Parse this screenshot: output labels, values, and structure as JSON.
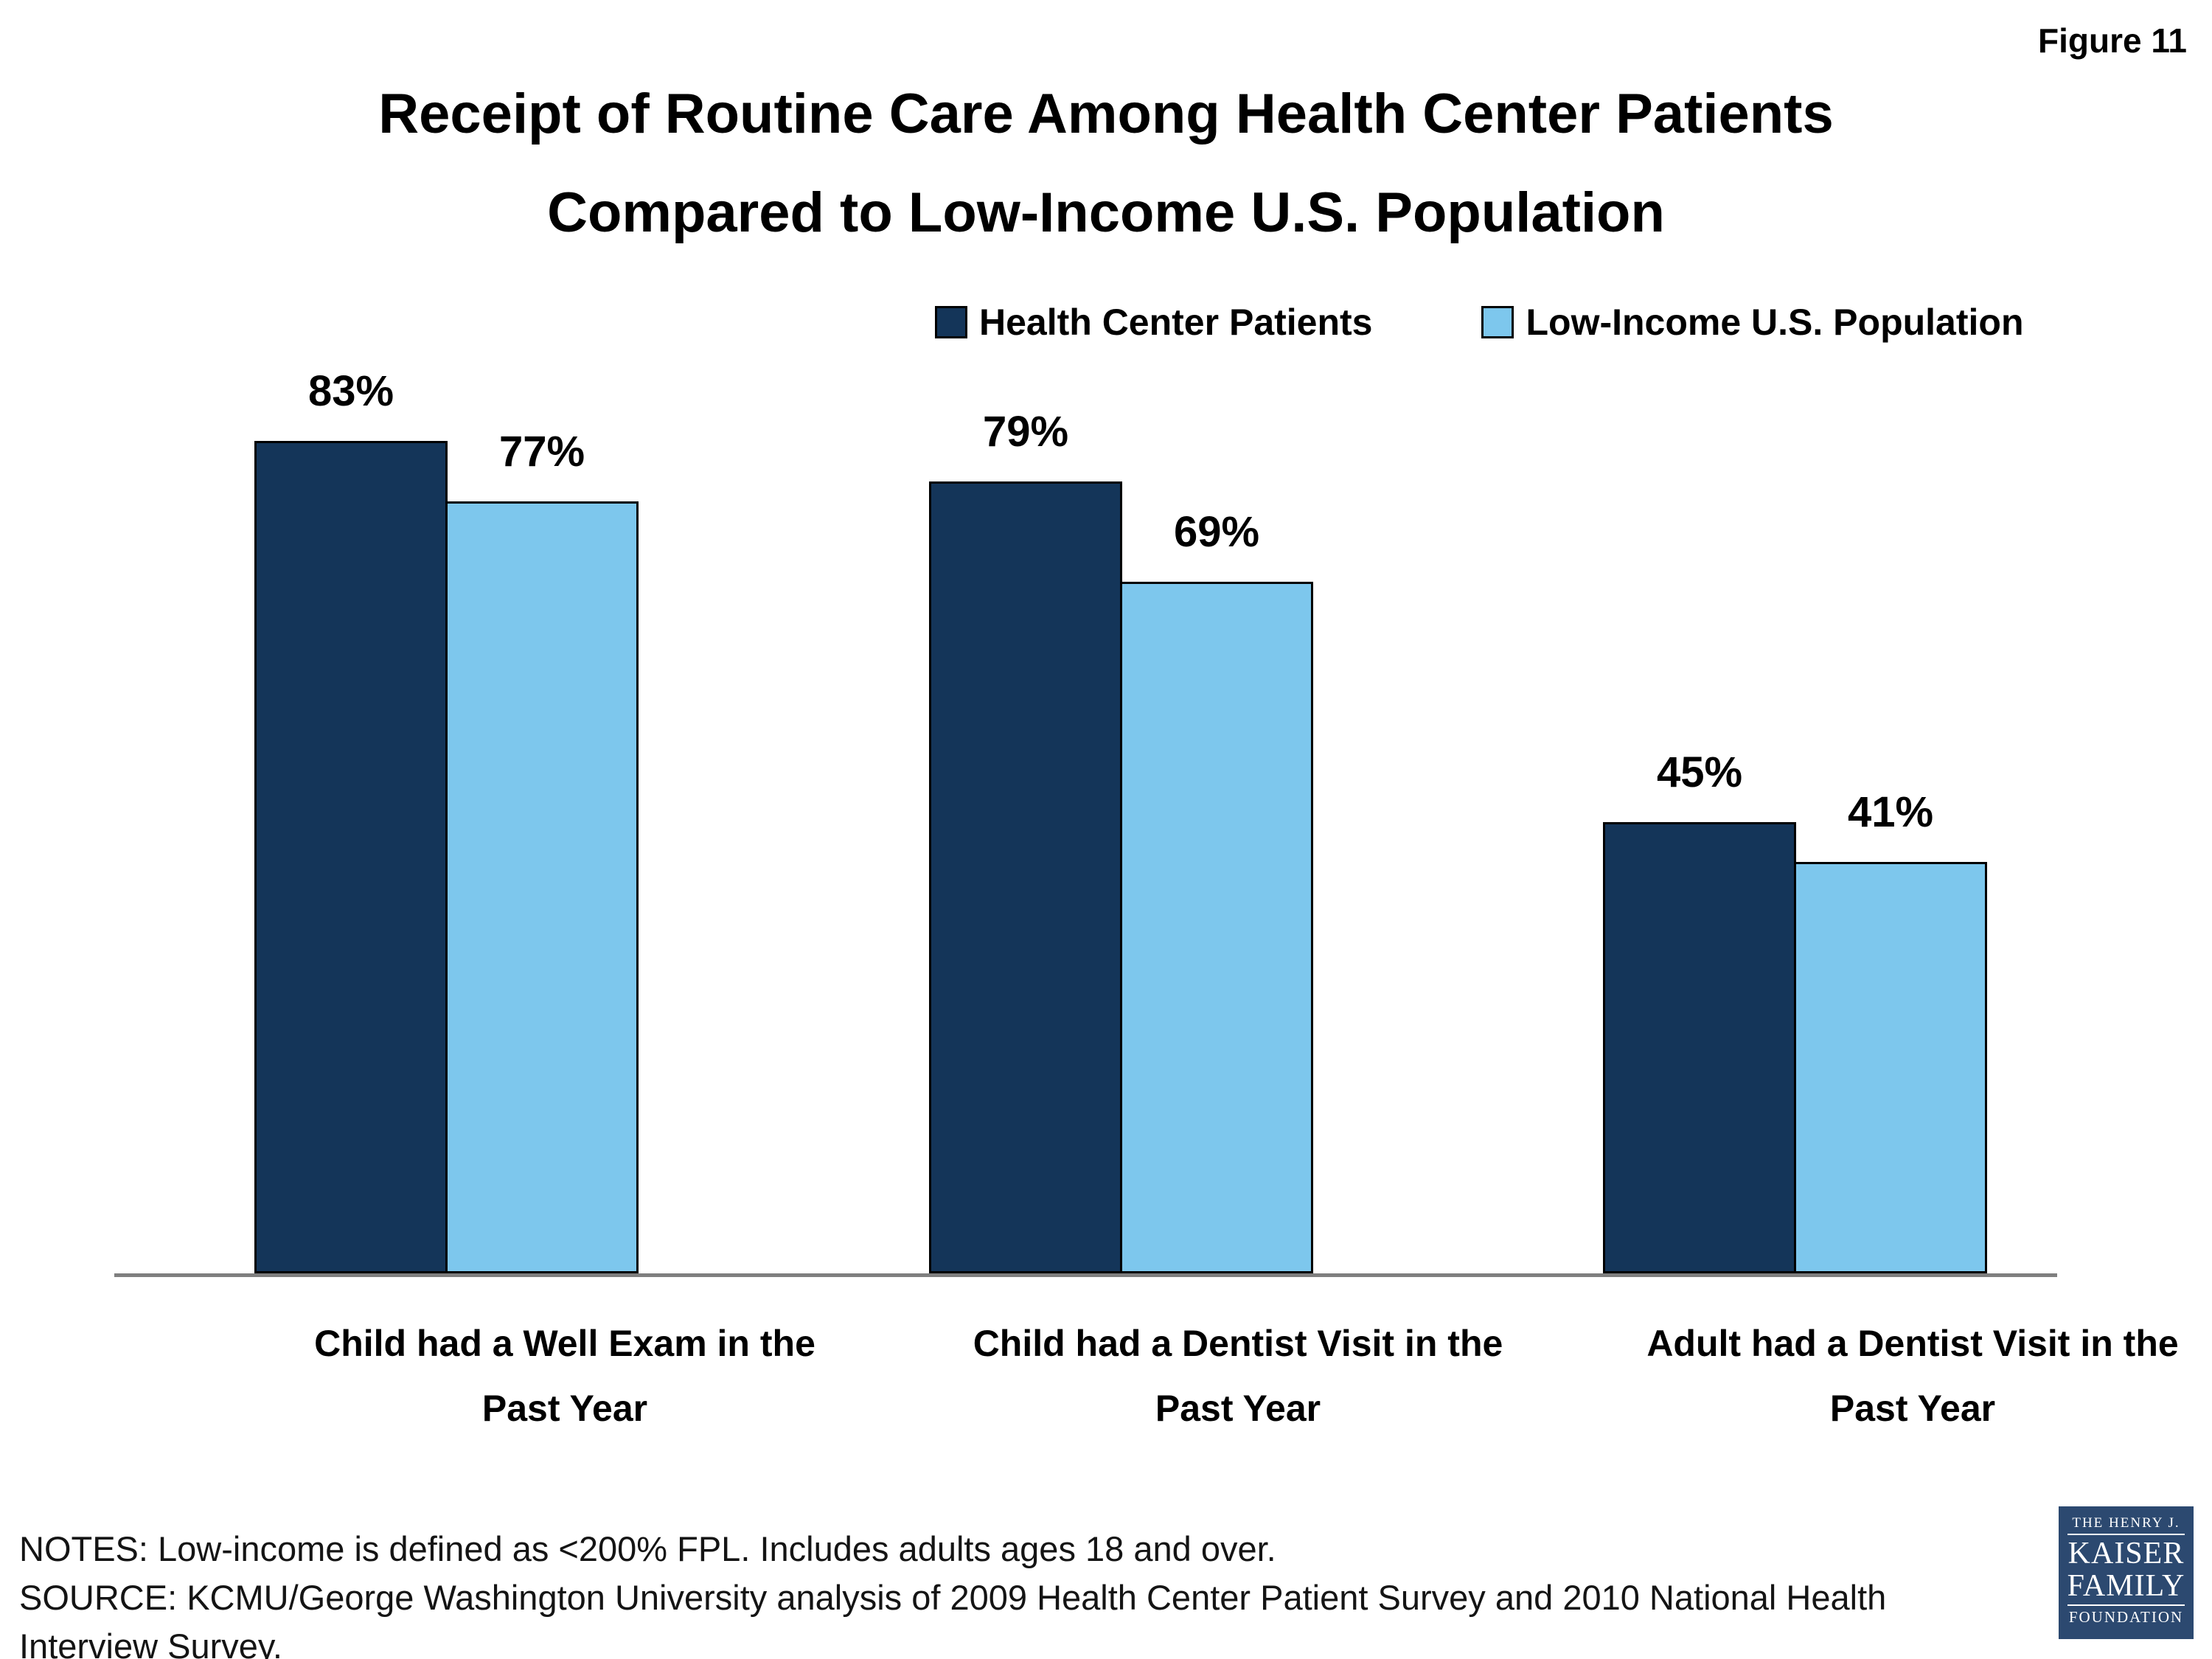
{
  "figure_label": "Figure 11",
  "title": {
    "line1": "Receipt of Routine Care Among Health Center Patients",
    "line2": "Compared to Low-Income U.S. Population"
  },
  "chart_data": {
    "type": "bar",
    "title": "Receipt of Routine Care Among Health Center Patients Compared to Low-Income U.S. Population",
    "xlabel": "",
    "ylabel": "",
    "unit": "%",
    "ylim": [
      0,
      100
    ],
    "grid": false,
    "legend_position": "top",
    "axis_line_color": "#7F7F7F",
    "bar_border_color": "#000000",
    "categories": [
      {
        "label": "Child had a Well Exam in the Past Year",
        "line1": "Child had a Well Exam in the",
        "line2": "Past Year"
      },
      {
        "label": "Child had a Dentist Visit in the Past Year",
        "line1": "Child had a Dentist Visit in the",
        "line2": "Past Year"
      },
      {
        "label": "Adult had a Dentist Visit in the Past Year",
        "line1": "Adult had a Dentist Visit in the",
        "line2": "Past Year"
      }
    ],
    "series": [
      {
        "name": "Health Center Patients",
        "color": "#143559",
        "values": [
          83,
          79,
          45
        ],
        "labels": [
          "83%",
          "79%",
          "45%"
        ]
      },
      {
        "name": "Low-Income U.S. Population",
        "color": "#7DC7ED",
        "values": [
          77,
          69,
          41
        ],
        "labels": [
          "77%",
          "69%",
          "41%"
        ]
      }
    ]
  },
  "notes": {
    "lines": [
      "NOTES: Low-income is defined as <200% FPL. Includes adults ages 18 and over.",
      "SOURCE: KCMU/George Washington University analysis of 2009 Health Center Patient Survey and 2010 National Health",
      "Interview Survey."
    ]
  },
  "logo": {
    "line1": "THE HENRY J.",
    "line2": "KAISER",
    "line3": "FAMILY",
    "line4": "FOUNDATION",
    "bg_color": "#2C4970"
  }
}
